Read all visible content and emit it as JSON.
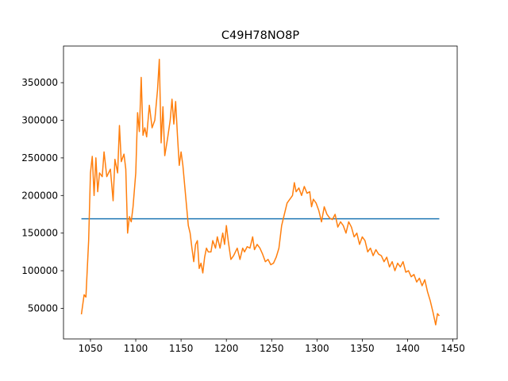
{
  "chart_data": {
    "type": "line",
    "title": "C49H78NO8P",
    "xlim": [
      1020.25,
      1454.75
    ],
    "ylim": [
      9300,
      398700
    ],
    "xticks": [
      1050,
      1100,
      1150,
      1200,
      1250,
      1300,
      1350,
      1400,
      1450
    ],
    "yticks": [
      50000,
      100000,
      150000,
      200000,
      250000,
      300000,
      350000
    ],
    "series": [
      {
        "color": "#1f77b4",
        "x": [
          1040,
          1435
        ],
        "values": [
          169000,
          169000
        ]
      },
      {
        "color": "#ff7f0e",
        "x": [
          1040,
          1043,
          1045,
          1048,
          1050,
          1052,
          1054,
          1056,
          1058,
          1060,
          1063,
          1065,
          1068,
          1072,
          1075,
          1077,
          1080,
          1082,
          1084,
          1087,
          1089,
          1091,
          1093,
          1095,
          1097,
          1100,
          1102,
          1104,
          1106,
          1108,
          1110,
          1112,
          1115,
          1118,
          1121,
          1124,
          1126,
          1128,
          1130,
          1132,
          1135,
          1138,
          1140,
          1142,
          1144,
          1146,
          1148,
          1150,
          1152,
          1155,
          1158,
          1160,
          1162,
          1164,
          1166,
          1168,
          1170,
          1172,
          1174,
          1176,
          1178,
          1180,
          1183,
          1185,
          1188,
          1190,
          1193,
          1196,
          1198,
          1200,
          1202,
          1205,
          1208,
          1210,
          1212,
          1215,
          1218,
          1220,
          1223,
          1226,
          1229,
          1231,
          1234,
          1237,
          1240,
          1243,
          1246,
          1249,
          1252,
          1255,
          1258,
          1261,
          1264,
          1267,
          1270,
          1273,
          1275,
          1277,
          1280,
          1283,
          1286,
          1289,
          1292,
          1294,
          1296,
          1299,
          1302,
          1305,
          1308,
          1311,
          1314,
          1317,
          1320,
          1323,
          1326,
          1329,
          1332,
          1335,
          1338,
          1341,
          1344,
          1347,
          1350,
          1353,
          1356,
          1359,
          1362,
          1365,
          1368,
          1371,
          1374,
          1377,
          1380,
          1383,
          1386,
          1389,
          1392,
          1395,
          1398,
          1401,
          1404,
          1407,
          1410,
          1413,
          1416,
          1419,
          1422,
          1425,
          1428,
          1431,
          1433,
          1435
        ],
        "values": [
          42000,
          68000,
          65000,
          140000,
          230000,
          252000,
          200000,
          250000,
          205000,
          230000,
          225000,
          258000,
          225000,
          235000,
          193000,
          248000,
          230000,
          293000,
          245000,
          255000,
          235000,
          150000,
          172000,
          165000,
          185000,
          230000,
          310000,
          285000,
          357000,
          280000,
          290000,
          278000,
          320000,
          290000,
          300000,
          340000,
          381000,
          270000,
          318000,
          253000,
          275000,
          300000,
          328000,
          295000,
          325000,
          280000,
          240000,
          258000,
          240000,
          200000,
          160000,
          150000,
          130000,
          112000,
          135000,
          140000,
          103000,
          110000,
          97000,
          118000,
          130000,
          125000,
          125000,
          140000,
          130000,
          145000,
          130000,
          150000,
          135000,
          160000,
          140000,
          115000,
          120000,
          125000,
          130000,
          115000,
          130000,
          125000,
          132000,
          130000,
          145000,
          128000,
          135000,
          130000,
          122000,
          112000,
          115000,
          108000,
          110000,
          118000,
          130000,
          160000,
          175000,
          190000,
          195000,
          200000,
          217000,
          205000,
          210000,
          200000,
          212000,
          203000,
          205000,
          185000,
          195000,
          190000,
          180000,
          165000,
          185000,
          175000,
          170000,
          168000,
          175000,
          158000,
          165000,
          160000,
          150000,
          165000,
          158000,
          145000,
          150000,
          135000,
          145000,
          140000,
          125000,
          130000,
          120000,
          128000,
          122000,
          120000,
          112000,
          118000,
          105000,
          112000,
          100000,
          110000,
          105000,
          112000,
          98000,
          100000,
          92000,
          95000,
          85000,
          90000,
          80000,
          88000,
          72000,
          60000,
          45000,
          28000,
          43000,
          40000
        ]
      }
    ]
  }
}
